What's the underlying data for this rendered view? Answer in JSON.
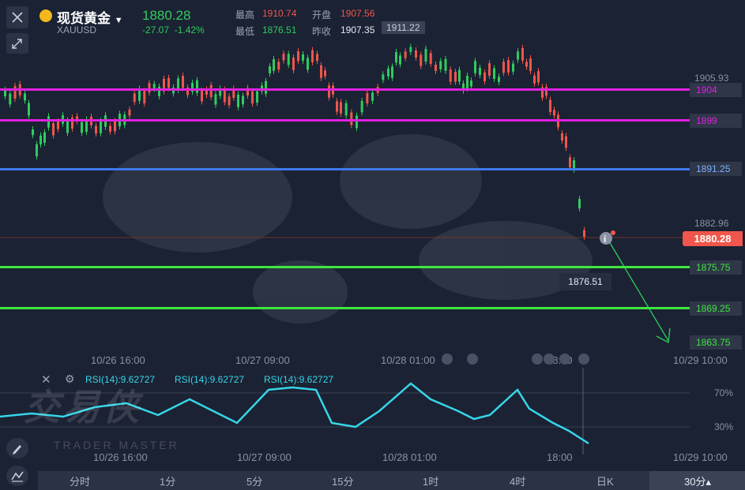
{
  "header": {
    "title": "现货黄金",
    "symbol": "XAUUSD",
    "price": "1880.28",
    "change": "-27.07",
    "change_pct": "-1.42%",
    "high_label": "最高",
    "high": "1910.74",
    "open_label": "开盘",
    "open": "1907.56",
    "low_label": "最低",
    "low": "1876.51",
    "prev_close_label": "昨收",
    "prev_close": "1907.35"
  },
  "price_axis": {
    "top_label": "1911.22",
    "marks": [
      "1905.93",
      "1882.96"
    ],
    "current": "1880.28",
    "low_label": "1876.51"
  },
  "levels": [
    {
      "price": "1904",
      "color": "#e020e0"
    },
    {
      "price": "1899",
      "color": "#e020e0"
    },
    {
      "price": "1891.25",
      "color": "#3d7bf0"
    },
    {
      "price": "1875.75",
      "color": "#3ee63e"
    },
    {
      "price": "1869.25",
      "color": "#3ee63e"
    }
  ],
  "target_level": "1863.75",
  "time_axis": [
    "10/26 16:00",
    "10/27 09:00",
    "10/28 01:00",
    "18:00",
    "10/29 10:00"
  ],
  "rsi": {
    "legend": [
      "RSI(14):9.62727",
      "RSI(14):9.62727",
      "RSI(14):9.62727"
    ],
    "levels": [
      "70%",
      "30%"
    ],
    "color": "#35d6e8"
  },
  "watermark": {
    "brand": "交易侠",
    "sub": "TRADER MASTER"
  },
  "timeframes": [
    "分时",
    "1分",
    "5分",
    "15分",
    "1时",
    "4时",
    "日K",
    "30分▴"
  ],
  "colors": {
    "up": "#2fcc5e",
    "down": "#f0564b",
    "bg": "#1b2233"
  }
}
